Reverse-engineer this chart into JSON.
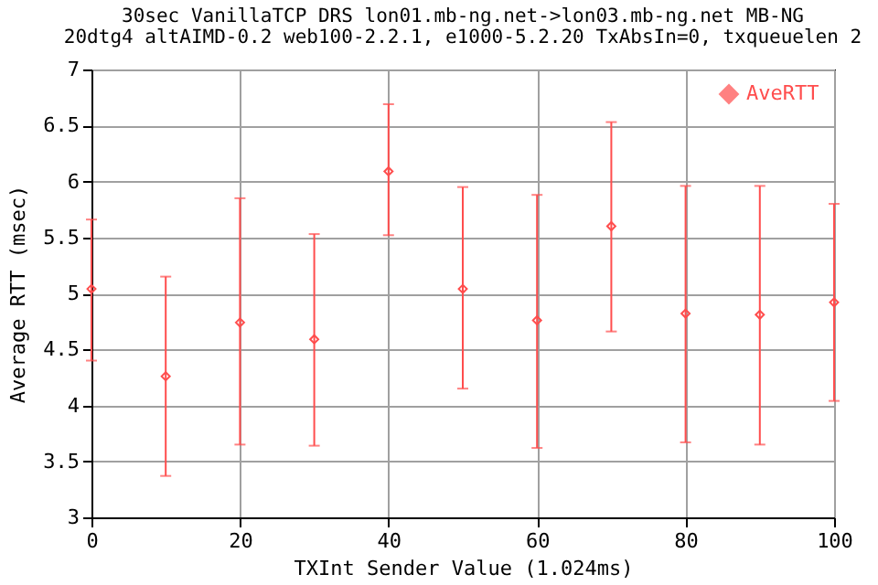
{
  "chart_data": {
    "type": "scatter",
    "title": "30sec VanillaTCP DRS lon01.mb-ng.net->lon03.mb-ng.net MB-NG",
    "subtitle": "20dtg4 altAIMD-0.2 web100-2.2.1, e1000-5.2.20 TxAbsIn=0, txqueuelen 2",
    "xlabel": "TXInt Sender Value (1.024ms)",
    "ylabel": "Average RTT (msec)",
    "x": [
      0,
      10,
      20,
      30,
      40,
      50,
      60,
      70,
      80,
      90,
      100
    ],
    "series": [
      {
        "name": "AveRTT",
        "color": "#ff4d4d",
        "values": [
          5.04,
          4.26,
          4.74,
          4.59,
          6.09,
          5.04,
          4.76,
          5.6,
          4.82,
          4.81,
          4.92
        ],
        "errors": [
          [
            4.4,
            5.66
          ],
          [
            3.37,
            5.15
          ],
          [
            3.65,
            5.85
          ],
          [
            3.64,
            5.53
          ],
          [
            5.52,
            6.69
          ],
          [
            4.15,
            5.95
          ],
          [
            3.62,
            5.88
          ],
          [
            4.66,
            6.53
          ],
          [
            3.67,
            5.96
          ],
          [
            3.65,
            5.96
          ],
          [
            4.04,
            5.8
          ]
        ]
      }
    ],
    "xlim": [
      0,
      100
    ],
    "xticks": [
      0,
      20,
      40,
      60,
      80,
      100
    ],
    "ylim": [
      3,
      7
    ],
    "yticks": [
      3,
      3.5,
      4,
      4.5,
      5,
      5.5,
      6,
      6.5,
      7
    ],
    "grid": true,
    "legend": "top right",
    "marker": "diamond"
  }
}
